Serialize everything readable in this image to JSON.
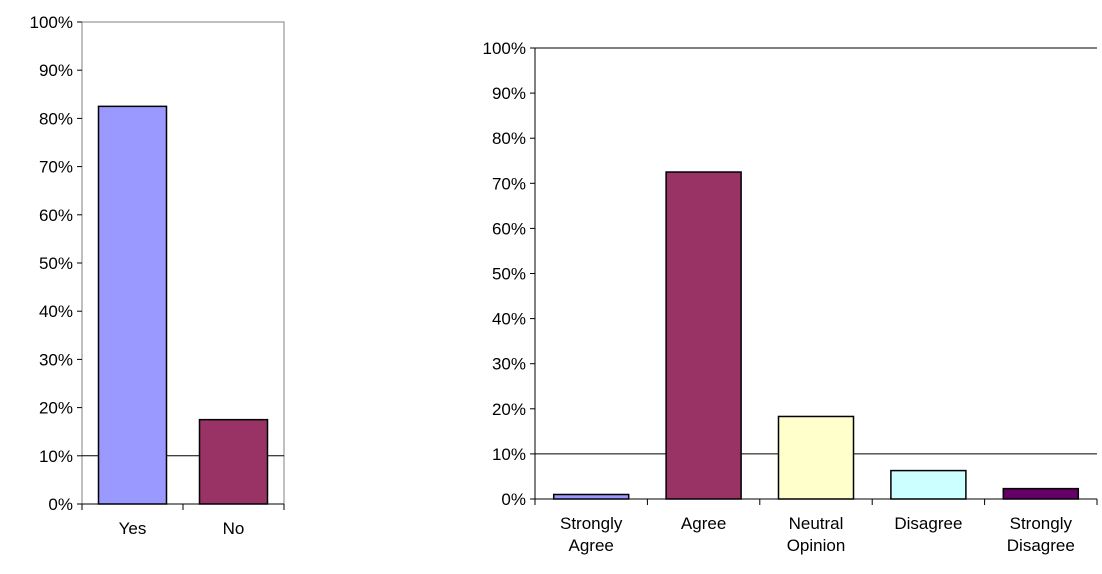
{
  "chart_data": [
    {
      "type": "bar",
      "title": "",
      "xlabel": "",
      "ylabel": "",
      "ylim": [
        0,
        100
      ],
      "yticks": [
        "0%",
        "10%",
        "20%",
        "30%",
        "40%",
        "50%",
        "60%",
        "70%",
        "80%",
        "90%",
        "100%"
      ],
      "categories": [
        [
          "Yes"
        ],
        [
          "No"
        ]
      ],
      "values": [
        82.5,
        17.5
      ],
      "colors": [
        "#9999ff",
        "#993366"
      ],
      "gridlines": [
        10
      ],
      "grid": false,
      "legend": "none"
    },
    {
      "type": "bar",
      "title": "",
      "xlabel": "",
      "ylabel": "",
      "ylim": [
        0,
        100
      ],
      "yticks": [
        "0%",
        "10%",
        "20%",
        "30%",
        "40%",
        "50%",
        "60%",
        "70%",
        "80%",
        "90%",
        "100%"
      ],
      "categories": [
        [
          "Strongly",
          "Agree"
        ],
        [
          "Agree"
        ],
        [
          "Neutral",
          "Opinion"
        ],
        [
          "Disagree"
        ],
        [
          "Strongly",
          "Disagree"
        ]
      ],
      "values": [
        1,
        72.5,
        18.3,
        6.3,
        2.3
      ],
      "colors": [
        "#9999ff",
        "#993366",
        "#ffffcc",
        "#ccffff",
        "#660066"
      ],
      "gridlines": [
        10,
        100
      ],
      "grid": false,
      "legend": "none"
    }
  ]
}
